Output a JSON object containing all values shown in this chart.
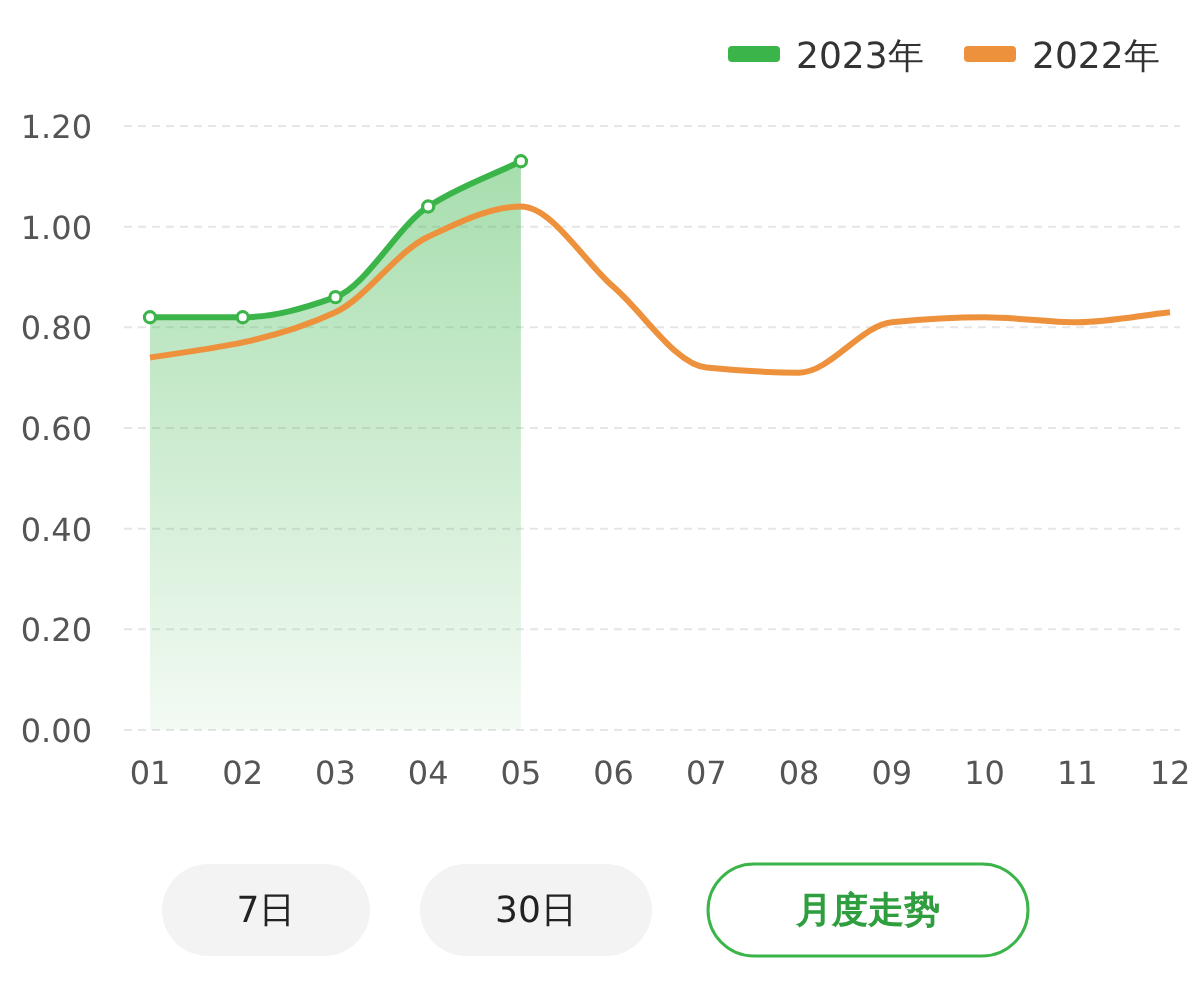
{
  "chart_data": {
    "type": "line",
    "categories": [
      "01",
      "02",
      "03",
      "04",
      "05",
      "06",
      "07",
      "08",
      "09",
      "10",
      "11",
      "12"
    ],
    "series": [
      {
        "name": "2023年",
        "type": "area",
        "color": "#3bb54a",
        "marker": "circle",
        "values": [
          0.82,
          0.82,
          0.86,
          1.04,
          1.13,
          null,
          null,
          null,
          null,
          null,
          null,
          null
        ]
      },
      {
        "name": "2022年",
        "color": "#ee913c",
        "marker": "none",
        "values": [
          0.74,
          0.77,
          0.83,
          0.98,
          1.04,
          0.88,
          0.72,
          0.71,
          0.81,
          0.82,
          0.81,
          0.83
        ]
      }
    ],
    "ylim": [
      0,
      1.2
    ],
    "yticks": [
      {
        "value": 0,
        "label": "0.00"
      },
      {
        "value": 0.2,
        "label": "0.20"
      },
      {
        "value": 0.4,
        "label": "0.40"
      },
      {
        "value": 0.6,
        "label": "0.60"
      },
      {
        "value": 0.8,
        "label": "0.80"
      },
      {
        "value": 1.0,
        "label": "1.00"
      },
      {
        "value": 1.2,
        "label": "1.20"
      }
    ],
    "grid": "y",
    "legend": "top right",
    "annotations": [
      "7日",
      "30日",
      "月度走势"
    ]
  }
}
